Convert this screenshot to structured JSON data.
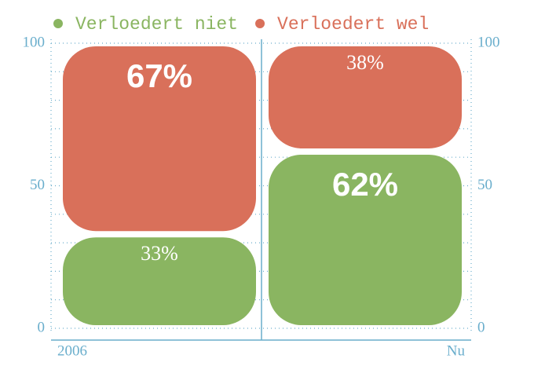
{
  "chart_data": {
    "type": "stacked_bar",
    "categories": [
      "2006",
      "Nu"
    ],
    "series": [
      {
        "name": "Verloedert niet",
        "color": "#8ab561",
        "values": [
          33,
          62
        ],
        "value_labels": [
          "33%",
          "62%"
        ]
      },
      {
        "name": "Verloedert wel",
        "color": "#d9705a",
        "values": [
          67,
          38
        ],
        "value_labels": [
          "67%",
          "38%"
        ]
      }
    ],
    "ylim": [
      0,
      100
    ],
    "yticks": [
      0,
      50,
      100
    ],
    "minor_yticks": [
      10,
      20,
      30,
      40,
      60,
      70,
      80,
      90
    ],
    "axis_color": "#6aaecc",
    "grid": true
  }
}
